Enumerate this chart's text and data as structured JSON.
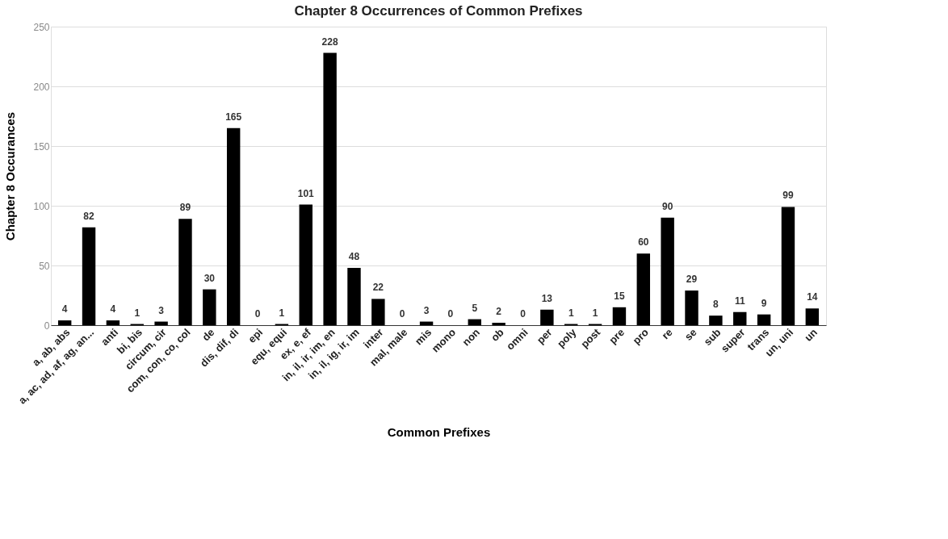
{
  "chart_data": {
    "type": "bar",
    "title": "Chapter 8 Occurrences of Common Prefixes",
    "xlabel": "Common Prefixes",
    "ylabel": "Chapter 8 Occurances",
    "categories": [
      "a, ab, abs",
      "a, ac, ad, af, ag, an...",
      "anti",
      "bi, bis",
      "circum, cir",
      "com, con, co, col",
      "de",
      "dis, dif, di",
      "epi",
      "equ, equi",
      "ex, e, ef",
      "in, il, ir, im, en",
      "in, il, ig, ir, im",
      "inter",
      "mal, male",
      "mis",
      "mono",
      "non",
      "ob",
      "omni",
      "per",
      "poly",
      "post",
      "pre",
      "pro",
      "re",
      "se",
      "sub",
      "super",
      "trans",
      "un, uni",
      "un"
    ],
    "values": [
      4,
      82,
      4,
      1,
      3,
      89,
      30,
      165,
      0,
      1,
      101,
      228,
      48,
      22,
      0,
      3,
      0,
      5,
      2,
      0,
      13,
      1,
      1,
      15,
      60,
      90,
      29,
      8,
      11,
      9,
      99,
      14
    ],
    "color": "#000000",
    "ylim": [
      0,
      250
    ],
    "yticks": [
      0,
      50,
      100,
      150,
      200,
      250
    ],
    "grid": "y",
    "data_labels": true
  }
}
